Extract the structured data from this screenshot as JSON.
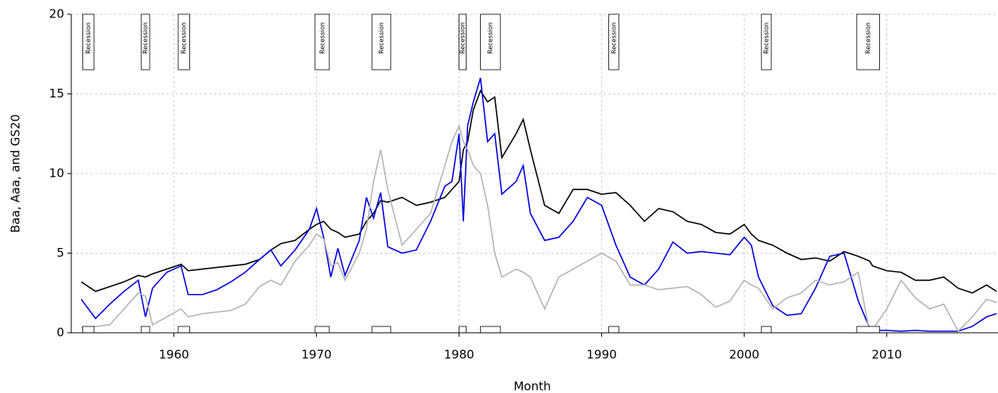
{
  "chart_data": {
    "type": "line",
    "xlabel": "Month",
    "ylabel": "Baa, Aaa, and GS20",
    "xlim": [
      1952.8,
      2017.8
    ],
    "xticks": [
      1960,
      1970,
      1980,
      1990,
      2000,
      2010
    ],
    "ylim": [
      0,
      20
    ],
    "yticks": [
      0,
      5,
      10,
      15,
      20
    ],
    "grid": true,
    "x": [
      1953.5,
      1954.5,
      1955.5,
      1956.5,
      1957.5,
      1958.0,
      1958.5,
      1959.5,
      1960.5,
      1961.0,
      1962,
      1963,
      1964,
      1965,
      1966,
      1966.8,
      1967.5,
      1968.5,
      1969.5,
      1970.0,
      1970.5,
      1971.0,
      1971.5,
      1972,
      1973,
      1973.5,
      1974.0,
      1974.5,
      1975,
      1976,
      1977,
      1978,
      1979,
      1979.5,
      1980.0,
      1980.3,
      1980.6,
      1981.0,
      1981.5,
      1982.0,
      1982.5,
      1983,
      1984.0,
      1984.5,
      1985,
      1986,
      1987,
      1988,
      1989,
      1990,
      1991,
      1992,
      1993,
      1994,
      1995,
      1996,
      1997,
      1998,
      1999,
      2000,
      2000.5,
      2001,
      2002,
      2003,
      2004,
      2005,
      2006,
      2007,
      2008,
      2008.8,
      2009,
      2010,
      2011,
      2012,
      2013,
      2014,
      2015,
      2016,
      2017,
      2017.7
    ],
    "series": [
      {
        "color": "#000000",
        "values": [
          3.2,
          2.6,
          2.9,
          3.2,
          3.6,
          3.5,
          3.7,
          4.0,
          4.3,
          3.9,
          4.0,
          4.1,
          4.2,
          4.3,
          4.6,
          5.2,
          5.6,
          5.8,
          6.5,
          6.8,
          7.0,
          6.5,
          6.3,
          6.0,
          6.2,
          7.0,
          7.5,
          8.3,
          8.2,
          8.5,
          8.0,
          8.2,
          8.5,
          9.0,
          9.5,
          11.5,
          12.0,
          14.0,
          15.2,
          14.5,
          14.8,
          11.0,
          12.5,
          13.4,
          11.5,
          8.0,
          7.5,
          9.0,
          9.0,
          8.7,
          8.8,
          8.0,
          7.0,
          7.8,
          7.6,
          7.0,
          6.8,
          6.3,
          6.2,
          6.8,
          6.2,
          5.8,
          5.5,
          5.0,
          4.6,
          4.7,
          4.5,
          5.1,
          4.8,
          4.5,
          4.2,
          3.9,
          3.8,
          3.3,
          3.3,
          3.5,
          2.8,
          2.5,
          3.0,
          2.6
        ]
      },
      {
        "color": "#0000dd",
        "values": [
          2.1,
          0.9,
          1.8,
          2.6,
          3.3,
          1.0,
          2.8,
          3.8,
          4.2,
          2.4,
          2.4,
          2.7,
          3.2,
          3.8,
          4.6,
          5.2,
          4.2,
          5.2,
          6.5,
          7.8,
          6.0,
          3.5,
          5.3,
          3.6,
          5.8,
          8.5,
          7.2,
          8.8,
          5.4,
          5.0,
          5.2,
          7.0,
          9.2,
          9.5,
          12.5,
          7.0,
          13.0,
          14.5,
          16.0,
          12.0,
          12.5,
          8.7,
          9.5,
          10.5,
          7.5,
          5.8,
          6.0,
          7.0,
          8.5,
          8.0,
          5.5,
          3.5,
          3.0,
          4.0,
          5.7,
          5.0,
          5.1,
          5.0,
          4.9,
          6.0,
          5.5,
          3.5,
          1.7,
          1.1,
          1.2,
          2.8,
          4.8,
          5.0,
          2.0,
          0.3,
          0.15,
          0.15,
          0.1,
          0.15,
          0.1,
          0.1,
          0.1,
          0.4,
          1.0,
          1.2
        ]
      },
      {
        "color": "#b4b4b4",
        "values": [
          0.3,
          0.4,
          0.5,
          1.5,
          2.5,
          2.3,
          0.5,
          1.0,
          1.5,
          1.0,
          1.2,
          1.3,
          1.4,
          1.8,
          2.9,
          3.3,
          3.0,
          4.5,
          5.5,
          6.2,
          5.9,
          4.2,
          4.4,
          3.3,
          5.0,
          6.5,
          9.5,
          11.5,
          9.0,
          5.5,
          6.5,
          7.5,
          10.5,
          12.0,
          13.0,
          12.0,
          11.5,
          10.5,
          10.0,
          8.0,
          5.0,
          3.5,
          4.0,
          3.8,
          3.5,
          1.5,
          3.5,
          4.0,
          4.5,
          5.0,
          4.5,
          3.0,
          3.0,
          2.7,
          2.8,
          2.9,
          2.4,
          1.6,
          2.0,
          3.3,
          3.0,
          2.8,
          1.5,
          2.2,
          2.5,
          3.3,
          3.0,
          3.2,
          3.8,
          0.0,
          0.2,
          1.5,
          3.3,
          2.2,
          1.5,
          1.8,
          0.1,
          1.0,
          2.1,
          1.9
        ]
      }
    ],
    "recessions": [
      {
        "start": 1953.6,
        "end": 1954.4,
        "label": "Recession"
      },
      {
        "start": 1957.7,
        "end": 1958.3,
        "label": "Recession"
      },
      {
        "start": 1960.3,
        "end": 1961.1,
        "label": "Recession"
      },
      {
        "start": 1969.9,
        "end": 1970.9,
        "label": "Recession"
      },
      {
        "start": 1973.9,
        "end": 1975.2,
        "label": "Recession"
      },
      {
        "start": 1980.0,
        "end": 1980.5,
        "label": "Recession"
      },
      {
        "start": 1981.5,
        "end": 1982.9,
        "label": "Recession"
      },
      {
        "start": 1990.5,
        "end": 1991.2,
        "label": "Recession"
      },
      {
        "start": 2001.2,
        "end": 2001.9,
        "label": "Recession"
      },
      {
        "start": 2007.9,
        "end": 2009.5,
        "label": "Recession"
      }
    ]
  }
}
